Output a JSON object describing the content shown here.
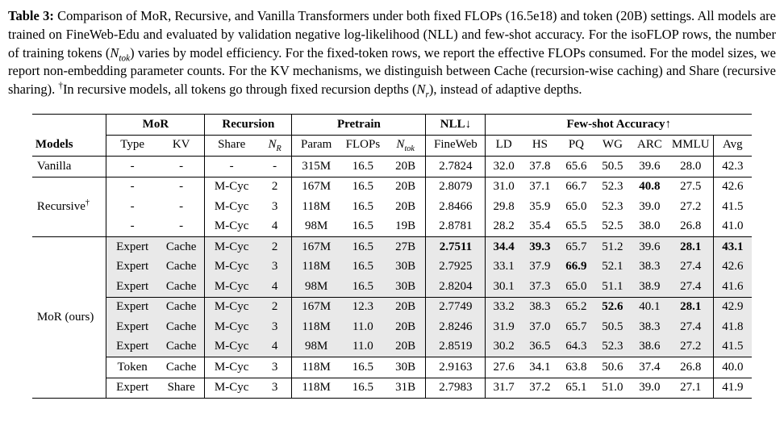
{
  "caption": {
    "segments": [
      {
        "t": "Table 3: ",
        "b": true
      },
      {
        "t": "Comparison of MoR, Recursive, and Vanilla Transformers under both fixed FLOPs (16.5e18) and token (20B) settings. All models are trained on FineWeb-Edu and evaluated by validation negative log-likelihood (NLL) and few-shot accuracy. For the isoFLOP rows, the number of training tokens ("
      },
      {
        "t": "N",
        "i": true
      },
      {
        "t": "tok",
        "i": true,
        "sub": true
      },
      {
        "t": ") varies by model efficiency. For the fixed-token rows, we report the effective FLOPs consumed. For the model sizes, we report non-embedding parameter counts. For the KV mechanisms, we distinguish between Cache (recursion-wise caching) and Share (recursive sharing). "
      },
      {
        "t": "†",
        "sup": true
      },
      {
        "t": "In recursive models, all tokens go through fixed recursion depths ("
      },
      {
        "t": "N",
        "i": true
      },
      {
        "t": "r",
        "i": true,
        "sub": true
      },
      {
        "t": "), instead of adaptive depths."
      }
    ]
  },
  "table": {
    "group_headers": [
      {
        "name": "spacer",
        "segs": [],
        "span": 1,
        "underline": false,
        "vline": true
      },
      {
        "name": "mor",
        "segs": [
          {
            "t": "MoR"
          }
        ],
        "span": 2,
        "underline": true,
        "vline": true
      },
      {
        "name": "recursion",
        "segs": [
          {
            "t": "Recursion"
          }
        ],
        "span": 2,
        "underline": true,
        "vline": true
      },
      {
        "name": "pretrain",
        "segs": [
          {
            "t": "Pretrain"
          }
        ],
        "span": 3,
        "underline": true,
        "vline": true
      },
      {
        "name": "nll",
        "segs": [
          {
            "t": "NLL↓"
          }
        ],
        "span": 1,
        "underline": true,
        "vline": true
      },
      {
        "name": "fewshot",
        "segs": [
          {
            "t": "Few-shot Accuracy↑"
          }
        ],
        "span": 7,
        "underline": true,
        "vline": false
      }
    ],
    "columns": [
      {
        "key": "models",
        "segs": [
          {
            "t": "Models",
            "b": true
          }
        ],
        "align": "left",
        "vline": true
      },
      {
        "key": "type",
        "segs": [
          {
            "t": "Type"
          }
        ]
      },
      {
        "key": "kv",
        "segs": [
          {
            "t": "KV"
          }
        ],
        "vline": true
      },
      {
        "key": "share",
        "segs": [
          {
            "t": "Share"
          }
        ]
      },
      {
        "key": "nr",
        "segs": [
          {
            "t": "N",
            "i": true
          },
          {
            "t": "R",
            "i": true,
            "sub": true
          }
        ],
        "vline": true
      },
      {
        "key": "param",
        "segs": [
          {
            "t": "Param"
          }
        ]
      },
      {
        "key": "flops",
        "segs": [
          {
            "t": "FLOPs"
          }
        ]
      },
      {
        "key": "ntok",
        "segs": [
          {
            "t": "N",
            "i": true
          },
          {
            "t": "tok",
            "i": true,
            "sub": true
          }
        ],
        "vline": true
      },
      {
        "key": "fineweb",
        "segs": [
          {
            "t": "FineWeb"
          }
        ],
        "vline": true
      },
      {
        "key": "ld",
        "segs": [
          {
            "t": "LD"
          }
        ]
      },
      {
        "key": "hs",
        "segs": [
          {
            "t": "HS"
          }
        ]
      },
      {
        "key": "pq",
        "segs": [
          {
            "t": "PQ"
          }
        ]
      },
      {
        "key": "wg",
        "segs": [
          {
            "t": "WG"
          }
        ]
      },
      {
        "key": "arc",
        "segs": [
          {
            "t": "ARC"
          }
        ]
      },
      {
        "key": "mmlu",
        "segs": [
          {
            "t": "MMLU"
          }
        ],
        "vline": true
      },
      {
        "key": "avg",
        "segs": [
          {
            "t": "Avg"
          }
        ]
      }
    ],
    "sections": [
      {
        "model_segs": [
          {
            "t": "Vanilla"
          }
        ],
        "blocks": [
          {
            "shaded": false,
            "rows": [
              [
                "-",
                "-",
                "-",
                "-",
                "315M",
                "16.5",
                "20B",
                "2.7824",
                "32.0",
                "37.8",
                "65.6",
                "50.5",
                "39.6",
                "28.0",
                "42.3"
              ]
            ]
          }
        ]
      },
      {
        "model_segs": [
          {
            "t": "Recursive"
          },
          {
            "t": "†",
            "sup": true
          }
        ],
        "blocks": [
          {
            "shaded": false,
            "rows": [
              [
                "-",
                "-",
                "M-Cyc",
                "2",
                "167M",
                "16.5",
                "20B",
                "2.8079",
                "31.0",
                "37.1",
                "66.7",
                "52.3",
                "**40.8**",
                "27.5",
                "42.6"
              ],
              [
                "-",
                "-",
                "M-Cyc",
                "3",
                "118M",
                "16.5",
                "20B",
                "2.8466",
                "29.8",
                "35.9",
                "65.0",
                "52.3",
                "39.0",
                "27.2",
                "41.5"
              ],
              [
                "-",
                "-",
                "M-Cyc",
                "4",
                "98M",
                "16.5",
                "19B",
                "2.8781",
                "28.2",
                "35.4",
                "65.5",
                "52.5",
                "38.0",
                "26.8",
                "41.0"
              ]
            ]
          }
        ]
      },
      {
        "model_segs": [
          {
            "t": "MoR (ours)"
          }
        ],
        "blocks": [
          {
            "shaded": true,
            "rows": [
              [
                "Expert",
                "Cache",
                "M-Cyc",
                "2",
                "167M",
                "16.5",
                "27B",
                "**2.7511**",
                "**34.4**",
                "**39.3**",
                "65.7",
                "51.2",
                "39.6",
                "**28.1**",
                "**43.1**"
              ],
              [
                "Expert",
                "Cache",
                "M-Cyc",
                "3",
                "118M",
                "16.5",
                "30B",
                "2.7925",
                "33.1",
                "37.9",
                "**66.9**",
                "52.1",
                "38.3",
                "27.4",
                "42.6"
              ],
              [
                "Expert",
                "Cache",
                "M-Cyc",
                "4",
                "98M",
                "16.5",
                "30B",
                "2.8204",
                "30.1",
                "37.3",
                "65.0",
                "51.1",
                "38.9",
                "27.4",
                "41.6"
              ]
            ]
          },
          {
            "shaded": true,
            "rows": [
              [
                "Expert",
                "Cache",
                "M-Cyc",
                "2",
                "167M",
                "12.3",
                "20B",
                "2.7749",
                "33.2",
                "38.3",
                "65.2",
                "**52.6**",
                "40.1",
                "**28.1**",
                "42.9"
              ],
              [
                "Expert",
                "Cache",
                "M-Cyc",
                "3",
                "118M",
                "11.0",
                "20B",
                "2.8246",
                "31.9",
                "37.0",
                "65.7",
                "50.5",
                "38.3",
                "27.4",
                "41.8"
              ],
              [
                "Expert",
                "Cache",
                "M-Cyc",
                "4",
                "98M",
                "11.0",
                "20B",
                "2.8519",
                "30.2",
                "36.5",
                "64.3",
                "52.3",
                "38.6",
                "27.2",
                "41.5"
              ]
            ]
          },
          {
            "shaded": false,
            "rows": [
              [
                "Token",
                "Cache",
                "M-Cyc",
                "3",
                "118M",
                "16.5",
                "30B",
                "2.9163",
                "27.6",
                "34.1",
                "63.8",
                "50.6",
                "37.4",
                "26.8",
                "40.0"
              ]
            ]
          },
          {
            "shaded": false,
            "rows": [
              [
                "Expert",
                "Share",
                "M-Cyc",
                "3",
                "118M",
                "16.5",
                "31B",
                "2.7983",
                "31.7",
                "37.2",
                "65.1",
                "51.0",
                "39.0",
                "27.1",
                "41.9"
              ]
            ]
          }
        ]
      }
    ]
  }
}
